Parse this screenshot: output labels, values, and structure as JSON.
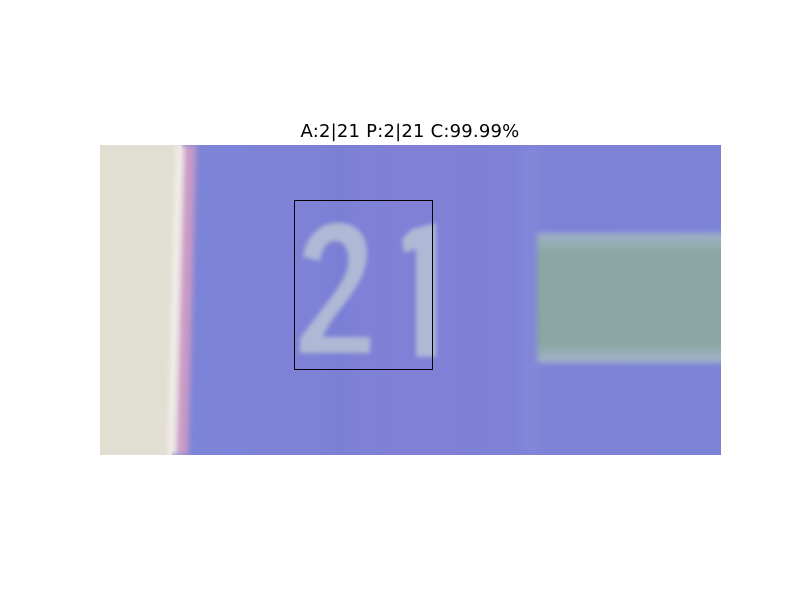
{
  "caption": {
    "text": "A:2|21 P:2|21 C:99.99%",
    "actual": "2|21",
    "predicted": "2|21",
    "confidence": "99.99%"
  },
  "photo": {
    "subject": "blurred close-up of a blue sign bearing the number",
    "visible_number": "21",
    "colors": {
      "sign_blue": "#7f80d4",
      "wall_beige": "#e1ded2",
      "edge_pink": "#c79ac2",
      "plate_gray_green": "#8aa7a4",
      "digit_pale": "#aab9d4"
    }
  },
  "bounding_box": {
    "color": "#000000"
  }
}
